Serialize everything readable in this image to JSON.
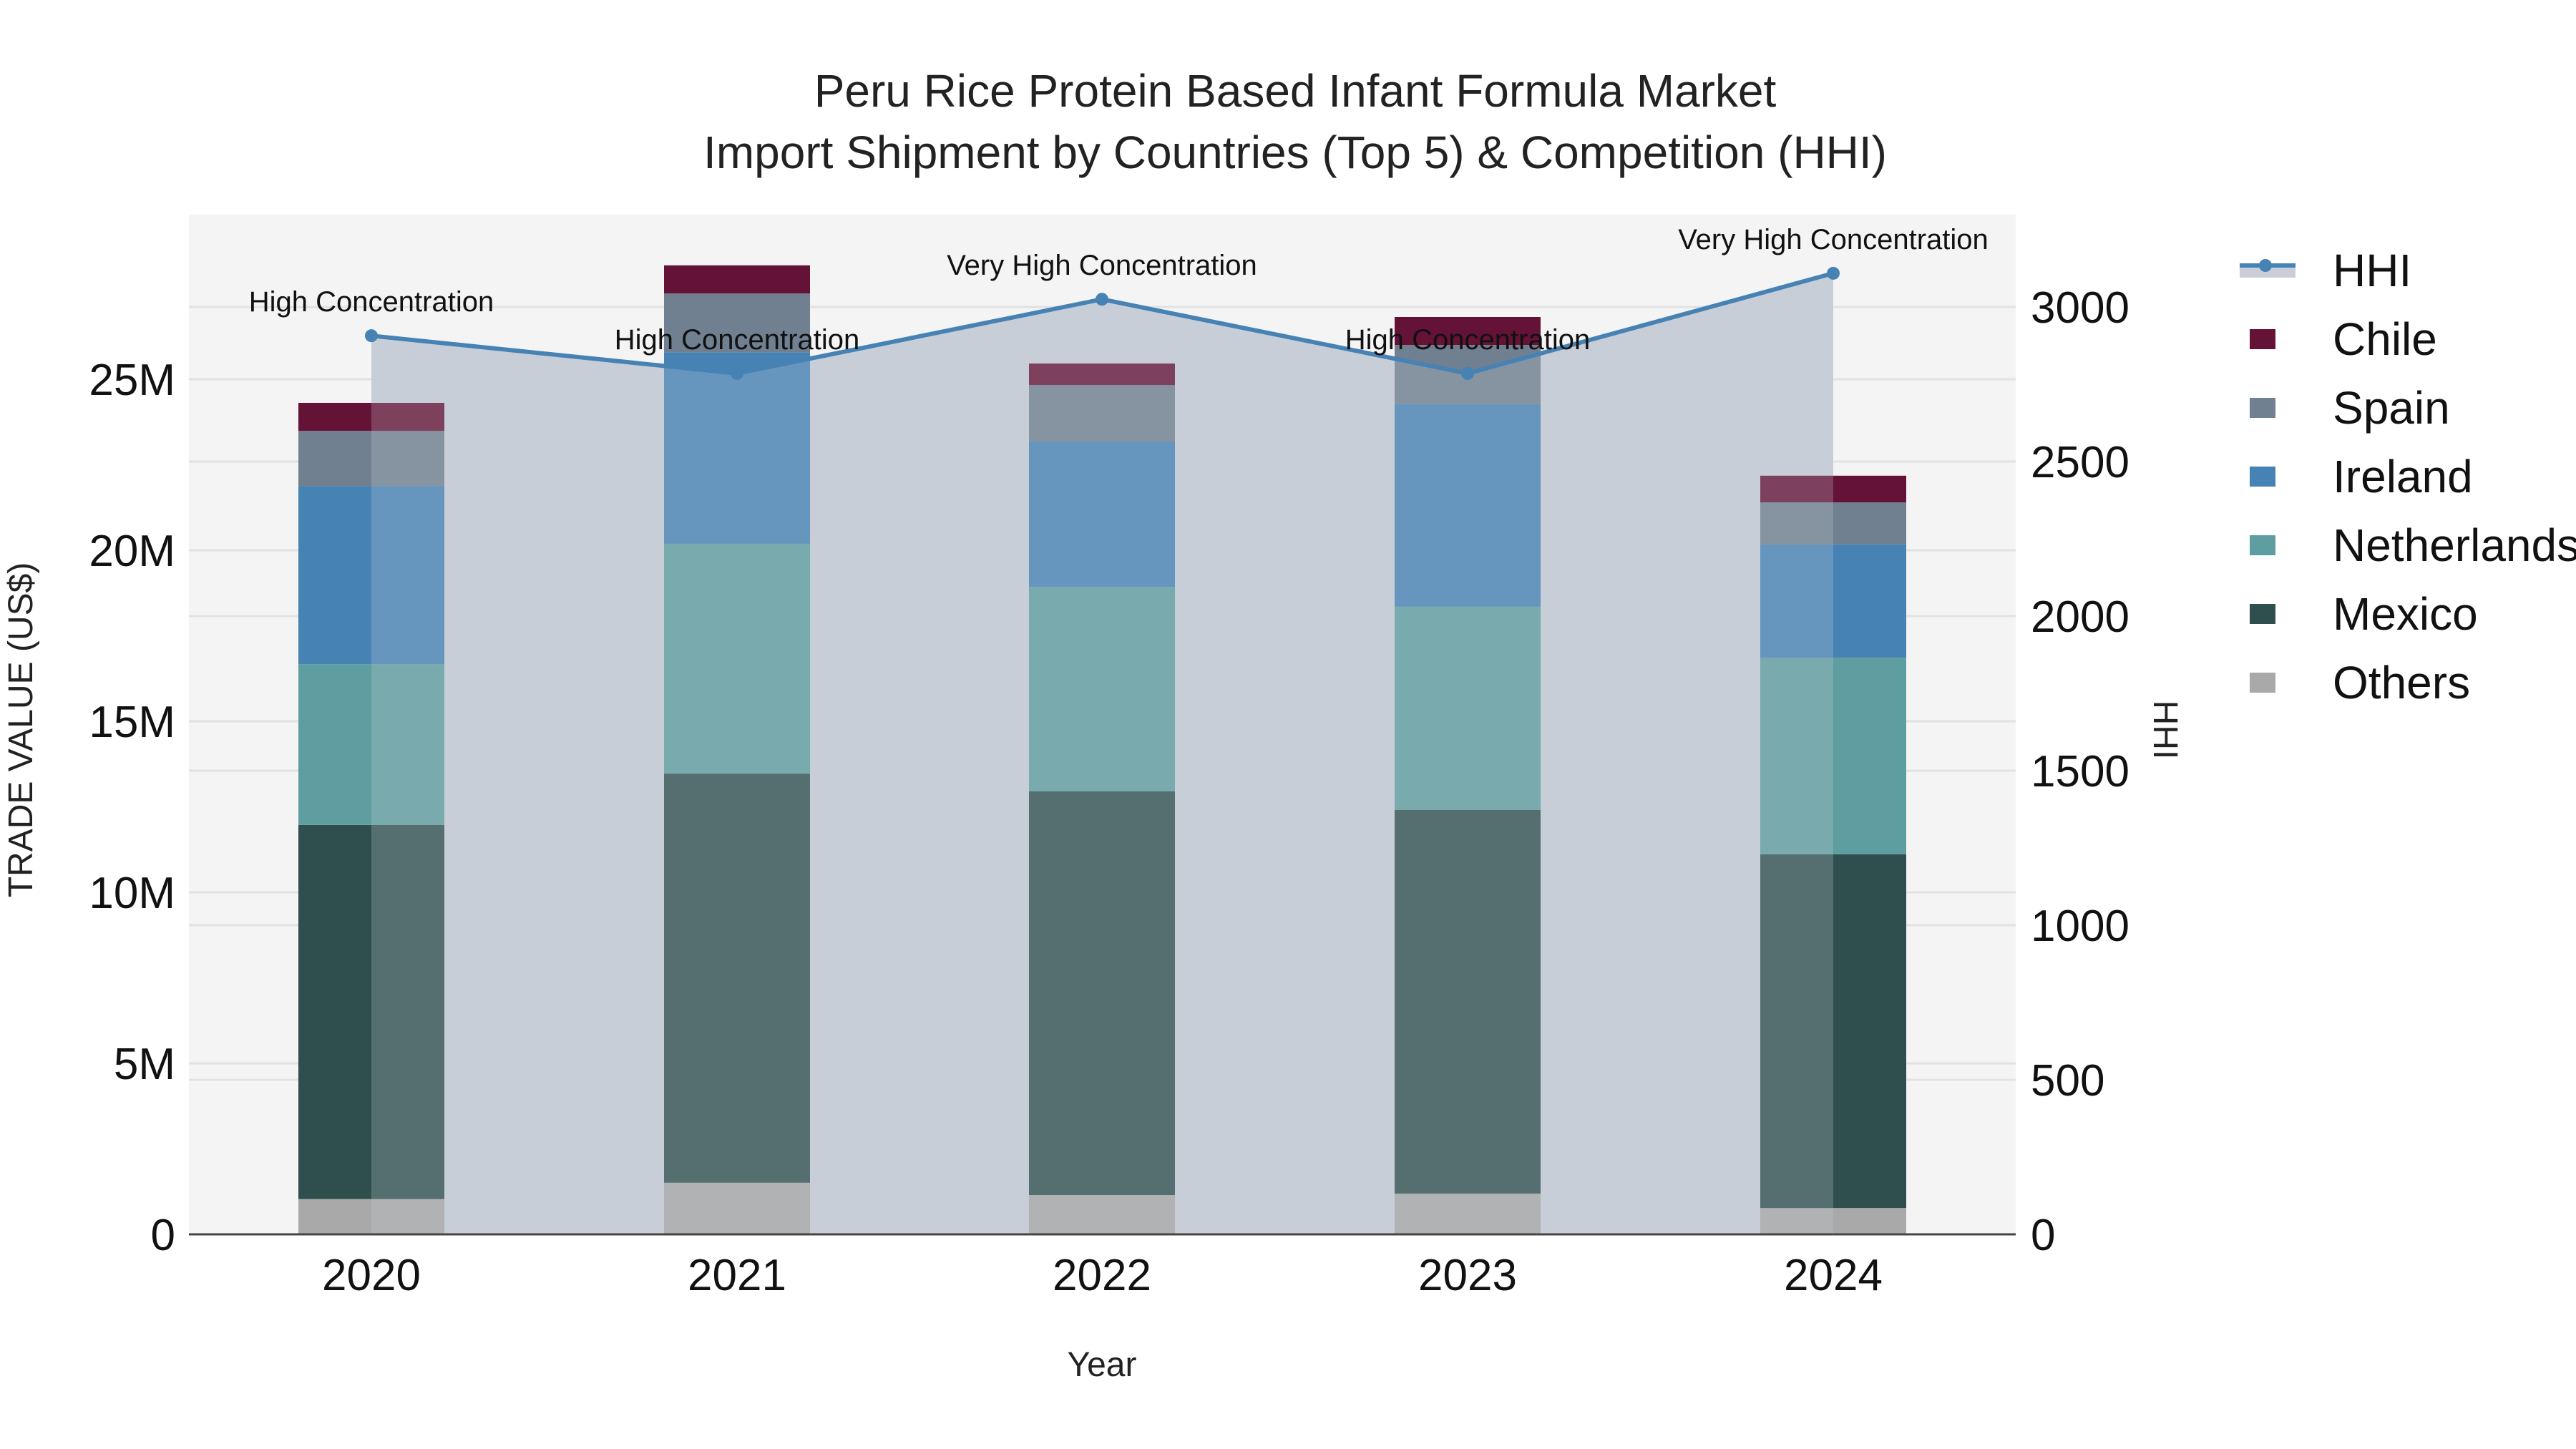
{
  "title": {
    "line1": "Peru Rice Protein Based Infant Formula Market",
    "line2": "Import Shipment by Countries (Top 5) & Competition (HHI)"
  },
  "axes": {
    "x_title": "Year",
    "y_left_title": "TRADE VALUE (US$)",
    "y_right_title": "HHI",
    "y_left_ticks": [
      "0",
      "5M",
      "10M",
      "15M",
      "20M",
      "25M"
    ],
    "y_right_ticks": [
      "0",
      "500",
      "1000",
      "1500",
      "2000",
      "2500",
      "3000"
    ]
  },
  "legend": {
    "items": [
      {
        "label": "HHI",
        "type": "line",
        "color": "#4682b4"
      },
      {
        "label": "Chile",
        "type": "bar",
        "color": "#641236"
      },
      {
        "label": "Spain",
        "type": "bar",
        "color": "#708090"
      },
      {
        "label": "Ireland",
        "type": "bar",
        "color": "#4682b4"
      },
      {
        "label": "Netherlands",
        "type": "bar",
        "color": "#5f9ea0"
      },
      {
        "label": "Mexico",
        "type": "bar",
        "color": "#2f4f4f"
      },
      {
        "label": "Others",
        "type": "bar",
        "color": "#a9a9a9"
      }
    ]
  },
  "annotations": [
    {
      "year": "2020",
      "text": "High Concentration"
    },
    {
      "year": "2021",
      "text": "High Concentration"
    },
    {
      "year": "2022",
      "text": "Very High Concentration"
    },
    {
      "year": "2023",
      "text": "High Concentration"
    },
    {
      "year": "2024",
      "text": "Very High Concentration"
    }
  ],
  "chart_data": {
    "type": "bar",
    "subtype": "stacked bar with line (dual axis)",
    "title": "Peru Rice Protein Based Infant Formula Market Import Shipment by Countries (Top 5) & Competition (HHI)",
    "xlabel": "Year",
    "ylabel": "TRADE VALUE (US$)",
    "y2label": "HHI",
    "categories": [
      "2020",
      "2021",
      "2022",
      "2023",
      "2024"
    ],
    "ylim": [
      0,
      29800000
    ],
    "y2lim": [
      0,
      3300
    ],
    "grid": true,
    "legend_position": "right",
    "series": [
      {
        "name": "Others",
        "axis": "y",
        "color": "#a9a9a9",
        "values": [
          1030000,
          1510000,
          1150000,
          1190000,
          770000
        ]
      },
      {
        "name": "Mexico",
        "axis": "y",
        "color": "#2f4f4f",
        "values": [
          10940000,
          11960000,
          11800000,
          11220000,
          10340000
        ]
      },
      {
        "name": "Netherlands",
        "axis": "y",
        "color": "#5f9ea0",
        "values": [
          4700000,
          6720000,
          5980000,
          5940000,
          5750000
        ]
      },
      {
        "name": "Ireland",
        "axis": "y",
        "color": "#4682b4",
        "values": [
          5210000,
          5600000,
          4250000,
          5920000,
          3310000
        ]
      },
      {
        "name": "Spain",
        "axis": "y",
        "color": "#708090",
        "values": [
          1610000,
          1720000,
          1650000,
          1730000,
          1230000
        ]
      },
      {
        "name": "Chile",
        "axis": "y",
        "color": "#641236",
        "values": [
          820000,
          820000,
          630000,
          820000,
          780000
        ]
      },
      {
        "name": "HHI",
        "axis": "y2",
        "type": "line+area",
        "color": "#4682b4",
        "values": [
          2907,
          2785,
          3025,
          2785,
          3109
        ]
      }
    ],
    "annotations": [
      "High Concentration",
      "High Concentration",
      "Very High Concentration",
      "High Concentration",
      "Very High Concentration"
    ]
  }
}
